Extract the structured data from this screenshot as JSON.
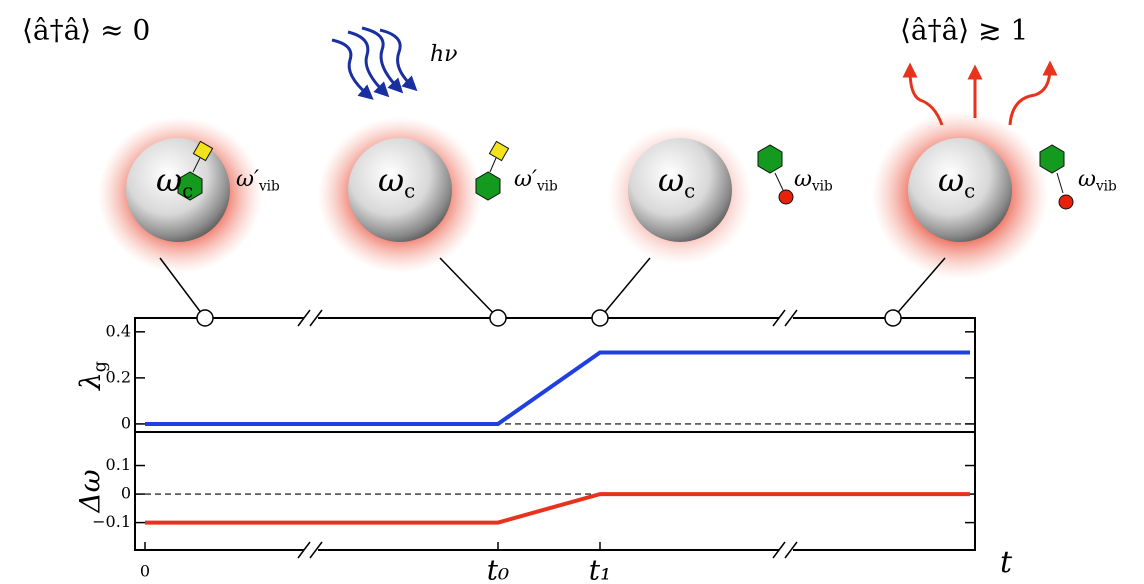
{
  "annotations": {
    "left": "⟨â†â⟩ ≈ 0",
    "photon": "hν",
    "right": "⟨â†â⟩ ≳ 1"
  },
  "panels": [
    {
      "cavity": {
        "symbol": "ω",
        "sub": "c"
      },
      "vib": {
        "symbol": "ω′",
        "sub": "vib"
      }
    },
    {
      "cavity": {
        "symbol": "ω",
        "sub": "c"
      },
      "vib": {
        "symbol": "ω′",
        "sub": "vib"
      }
    },
    {
      "cavity": {
        "symbol": "ω",
        "sub": "c"
      },
      "vib": {
        "symbol": "ω",
        "sub": "vib"
      }
    },
    {
      "cavity": {
        "symbol": "ω",
        "sub": "c"
      },
      "vib": {
        "symbol": "ω",
        "sub": "vib"
      }
    }
  ],
  "chart_data": [
    {
      "type": "line",
      "ylabel": {
        "symbol": "λ",
        "sub": "g"
      },
      "ylim": [
        -0.035,
        0.46
      ],
      "yticks": [
        0.4,
        0.2,
        0
      ],
      "series": [
        {
          "color": "#1f3fe0",
          "values": [
            0,
            0,
            0.31,
            0.31
          ]
        }
      ]
    },
    {
      "type": "line",
      "ylabel": "Δω",
      "xlabel": "t",
      "categories": [
        "0",
        "t₀",
        "t₁",
        null
      ],
      "ylim": [
        -0.196,
        0.2175
      ],
      "yticks": [
        0.1,
        0,
        {
          "value": -0.1,
          "label": "−0.1"
        }
      ],
      "series": [
        {
          "color": "#e8321c",
          "values": [
            -0.1,
            -0.1,
            0,
            0
          ]
        }
      ]
    }
  ]
}
